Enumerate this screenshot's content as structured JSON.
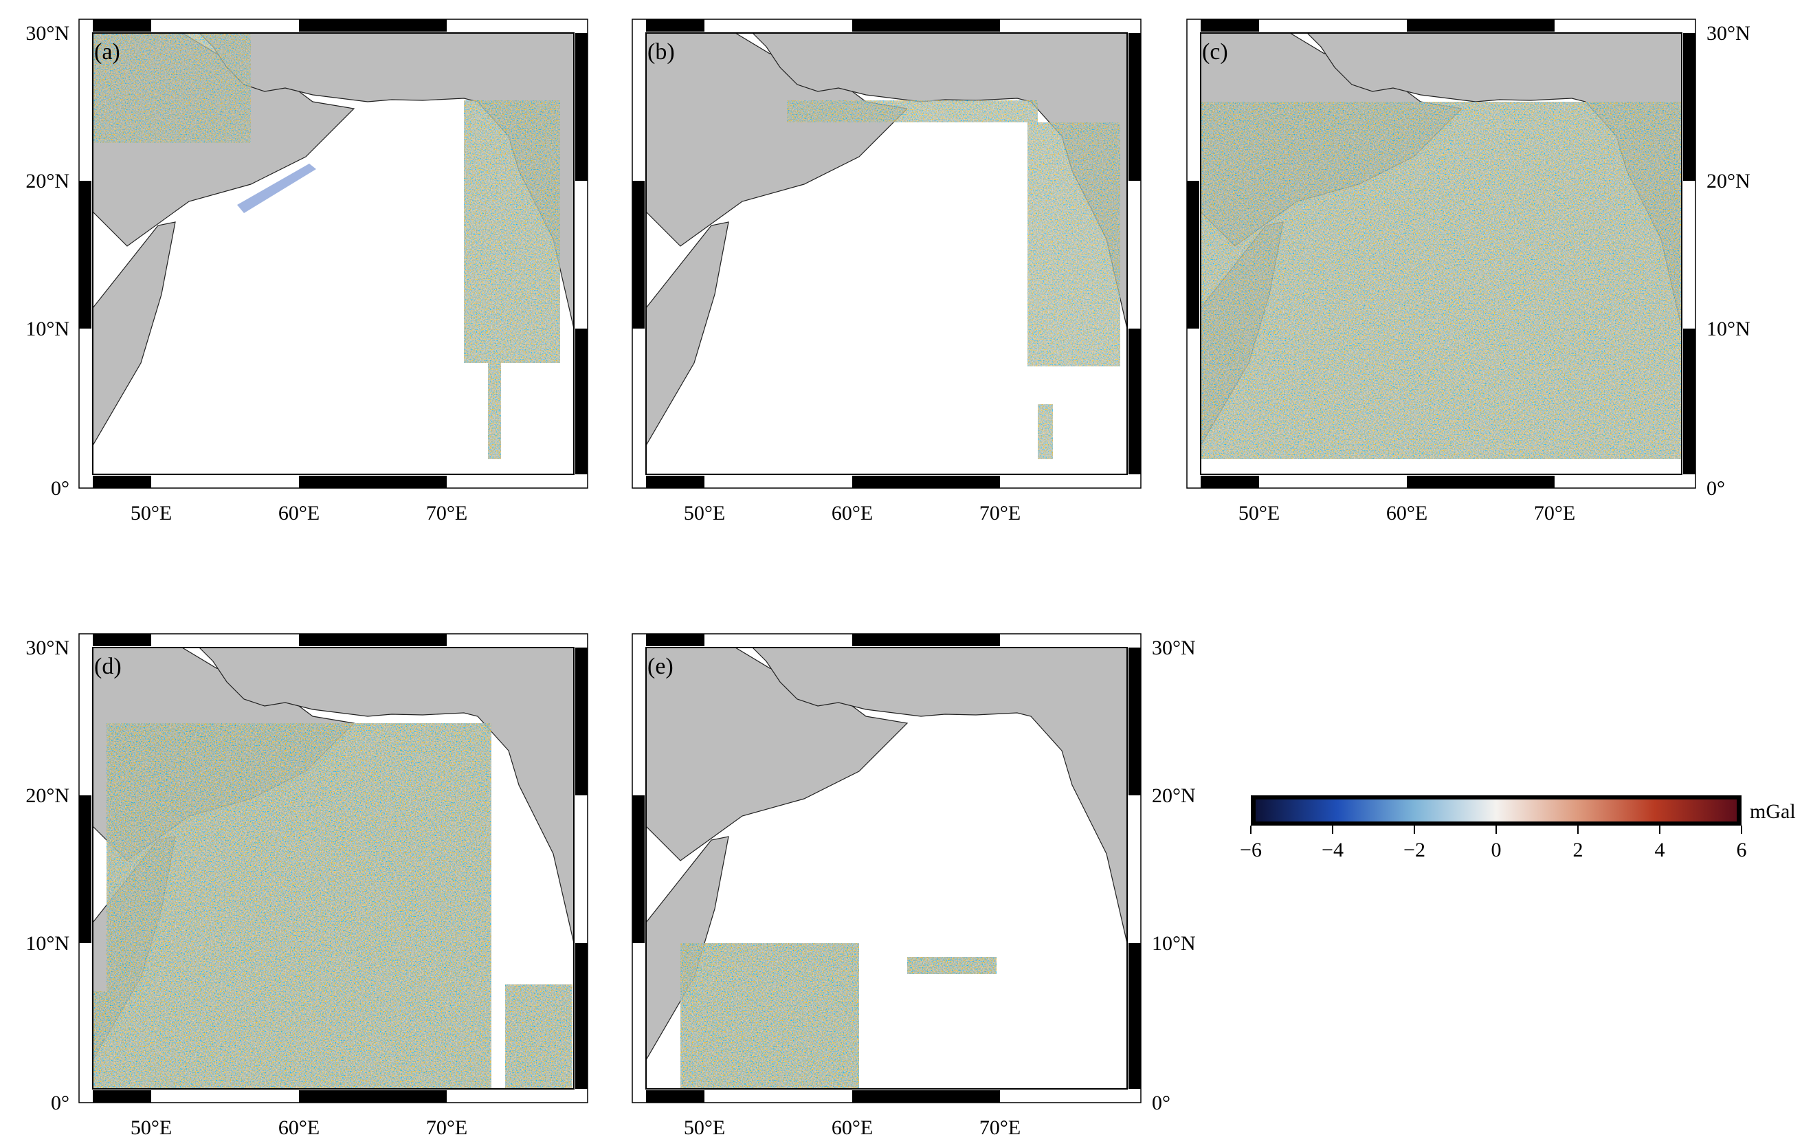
{
  "panels": [
    {
      "label": "(a)",
      "lat_labels_left": true,
      "lat_labels_right": false,
      "lon_labels": true
    },
    {
      "label": "(b)",
      "lat_labels_left": false,
      "lat_labels_right": false,
      "lon_labels": true
    },
    {
      "label": "(c)",
      "lat_labels_left": false,
      "lat_labels_right": true,
      "lon_labels": true
    },
    {
      "label": "(d)",
      "lat_labels_left": true,
      "lat_labels_right": false,
      "lon_labels": true
    },
    {
      "label": "(e)",
      "lat_labels_left": false,
      "lat_labels_right": true,
      "lon_labels": true
    }
  ],
  "map_extent": {
    "lon": [
      45.5,
      80.0
    ],
    "lat": [
      0,
      30
    ]
  },
  "lon_ticks": [
    "50°E",
    "60°E",
    "70°E"
  ],
  "lat_ticks": [
    "0°",
    "10°N",
    "20°N",
    "30°N"
  ],
  "colorbar": {
    "unit": "mGal",
    "tick_labels": [
      "−6",
      "−4",
      "−2",
      "0",
      "2",
      "4",
      "6"
    ],
    "range": [
      -6,
      6
    ],
    "colors": [
      "#0d1238",
      "#1f4fb8",
      "#7db4d8",
      "#f4f2ef",
      "#dd9a7e",
      "#b83a22",
      "#5e0d1a"
    ]
  },
  "colors": {
    "land": "#bdbdbd",
    "ocean": "#ffffff",
    "frame": "#000000"
  }
}
